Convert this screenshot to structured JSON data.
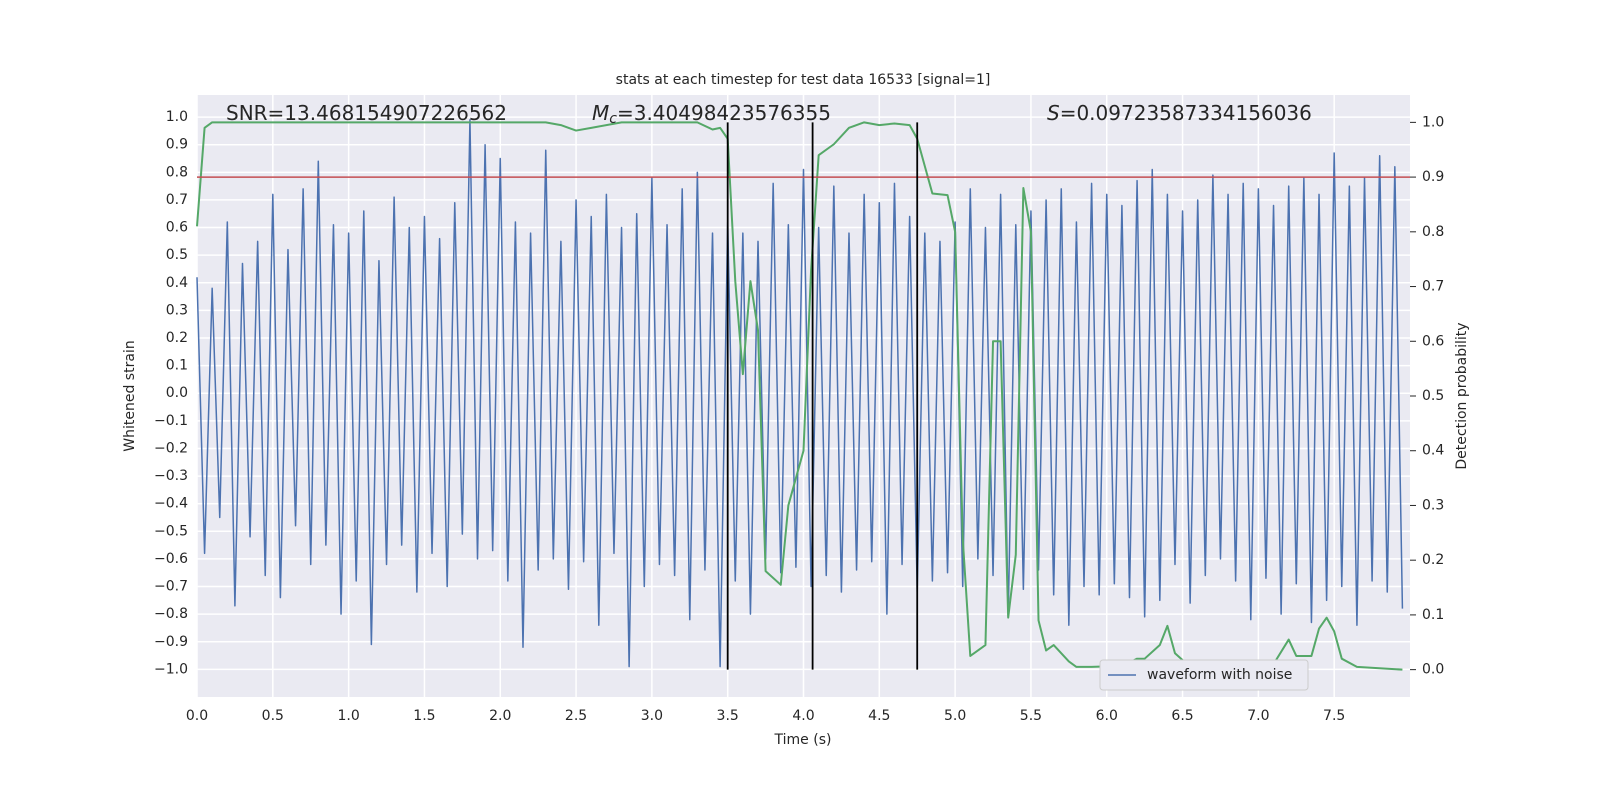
{
  "chart_data": {
    "type": "line",
    "title": "stats at each timestep for test data 16533 [signal=1]",
    "xlabel": "Time (s)",
    "ylabel": "Whitened strain",
    "y2label": "Detection probability",
    "xlim": [
      0,
      8.0
    ],
    "ylim": [
      -1.1,
      1.08
    ],
    "y2lim": [
      -0.05,
      1.05
    ],
    "xticks": [
      {
        "value": 0,
        "label": "0.0"
      },
      {
        "value": 0.5,
        "label": "0.5"
      },
      {
        "value": 1,
        "label": "1.0"
      },
      {
        "value": 1.5,
        "label": "1.5"
      },
      {
        "value": 2,
        "label": "2.0"
      },
      {
        "value": 2.5,
        "label": "2.5"
      },
      {
        "value": 3,
        "label": "3.0"
      },
      {
        "value": 3.5,
        "label": "3.5"
      },
      {
        "value": 4,
        "label": "4.0"
      },
      {
        "value": 4.5,
        "label": "4.5"
      },
      {
        "value": 5,
        "label": "5.0"
      },
      {
        "value": 5.5,
        "label": "5.5"
      },
      {
        "value": 6,
        "label": "6.0"
      },
      {
        "value": 6.5,
        "label": "6.5"
      },
      {
        "value": 7,
        "label": "7.0"
      },
      {
        "value": 7.5,
        "label": "7.5"
      }
    ],
    "yticks": [
      {
        "value": -1,
        "label": "−1.0"
      },
      {
        "value": -0.9,
        "label": "−0.9"
      },
      {
        "value": -0.8,
        "label": "−0.8"
      },
      {
        "value": -0.7,
        "label": "−0.7"
      },
      {
        "value": -0.6,
        "label": "−0.6"
      },
      {
        "value": -0.5,
        "label": "−0.5"
      },
      {
        "value": -0.4,
        "label": "−0.4"
      },
      {
        "value": -0.3,
        "label": "−0.3"
      },
      {
        "value": -0.2,
        "label": "−0.2"
      },
      {
        "value": -0.1,
        "label": "−0.1"
      },
      {
        "value": 0,
        "label": "0.0"
      },
      {
        "value": 0.1,
        "label": "0.1"
      },
      {
        "value": 0.2,
        "label": "0.2"
      },
      {
        "value": 0.3,
        "label": "0.3"
      },
      {
        "value": 0.4,
        "label": "0.4"
      },
      {
        "value": 0.5,
        "label": "0.5"
      },
      {
        "value": 0.6,
        "label": "0.6"
      },
      {
        "value": 0.7,
        "label": "0.7"
      },
      {
        "value": 0.8,
        "label": "0.8"
      },
      {
        "value": 0.9,
        "label": "0.9"
      },
      {
        "value": 1,
        "label": "1.0"
      }
    ],
    "y2ticks": [
      {
        "value": 0,
        "label": "0.0"
      },
      {
        "value": 0.1,
        "label": "0.1"
      },
      {
        "value": 0.2,
        "label": "0.2"
      },
      {
        "value": 0.3,
        "label": "0.3"
      },
      {
        "value": 0.4,
        "label": "0.4"
      },
      {
        "value": 0.5,
        "label": "0.5"
      },
      {
        "value": 0.6,
        "label": "0.6"
      },
      {
        "value": 0.7,
        "label": "0.7"
      },
      {
        "value": 0.8,
        "label": "0.8"
      },
      {
        "value": 0.9,
        "label": "0.9"
      },
      {
        "value": 1,
        "label": "1.0"
      }
    ],
    "grid": true,
    "legend": "lower right",
    "annotations": [
      {
        "text": "SNR=13.468154907226562"
      },
      {
        "symbol": "M",
        "subscript": "c",
        "text": "=3.40498423576355"
      },
      {
        "symbol": "S",
        "text": "=0.09723587334156036"
      }
    ],
    "reference_line": {
      "value": 0.9,
      "axis": "y2",
      "color": "#c44e52"
    },
    "vlines": {
      "x": [
        3.5,
        4.06,
        4.75
      ],
      "color": "#000000",
      "range": [
        0,
        1
      ],
      "axis": "y2"
    },
    "series": [
      {
        "name": "waveform with noise",
        "color": "#4c72b0",
        "x": [
          0,
          0.05,
          0.1,
          0.15,
          0.2,
          0.25,
          0.3,
          0.35,
          0.4,
          0.45,
          0.5,
          0.55,
          0.6,
          0.65,
          0.7,
          0.75,
          0.8,
          0.85,
          0.9,
          0.95,
          1,
          1.05,
          1.1,
          1.15,
          1.2,
          1.25,
          1.3,
          1.35,
          1.4,
          1.45,
          1.5,
          1.55,
          1.6,
          1.65,
          1.7,
          1.75,
          1.8,
          1.85,
          1.9,
          1.95,
          2,
          2.05,
          2.1,
          2.15,
          2.2,
          2.25,
          2.3,
          2.35,
          2.4,
          2.45,
          2.5,
          2.55,
          2.6,
          2.65,
          2.7,
          2.75,
          2.8,
          2.85,
          2.9,
          2.95,
          3,
          3.05,
          3.1,
          3.15,
          3.2,
          3.25,
          3.3,
          3.35,
          3.4,
          3.45,
          3.5,
          3.55,
          3.6,
          3.65,
          3.7,
          3.75,
          3.8,
          3.85,
          3.9,
          3.95,
          4,
          4.05,
          4.1,
          4.15,
          4.2,
          4.25,
          4.3,
          4.35,
          4.4,
          4.45,
          4.5,
          4.55,
          4.6,
          4.65,
          4.7,
          4.75,
          4.8,
          4.85,
          4.9,
          4.95,
          5,
          5.05,
          5.1,
          5.15,
          5.2,
          5.25,
          5.3,
          5.35,
          5.4,
          5.45,
          5.5,
          5.55,
          5.6,
          5.65,
          5.7,
          5.75,
          5.8,
          5.85,
          5.9,
          5.95,
          6,
          6.05,
          6.1,
          6.15,
          6.2,
          6.25,
          6.3,
          6.35,
          6.4,
          6.45,
          6.5,
          6.55,
          6.6,
          6.65,
          6.7,
          6.75,
          6.8,
          6.85,
          6.9,
          6.95,
          7,
          7.05,
          7.1,
          7.15,
          7.2,
          7.25,
          7.3,
          7.35,
          7.4,
          7.45,
          7.5,
          7.55,
          7.6,
          7.65,
          7.7,
          7.75,
          7.8,
          7.85,
          7.9,
          7.95
        ],
        "values": [
          0.42,
          -0.58,
          0.38,
          -0.45,
          0.62,
          -0.77,
          0.47,
          -0.52,
          0.55,
          -0.66,
          0.72,
          -0.74,
          0.52,
          -0.48,
          0.74,
          -0.62,
          0.84,
          -0.55,
          0.61,
          -0.8,
          0.58,
          -0.68,
          0.66,
          -0.91,
          0.48,
          -0.62,
          0.71,
          -0.55,
          0.6,
          -0.72,
          0.64,
          -0.58,
          0.56,
          -0.7,
          0.69,
          -0.51,
          0.99,
          -0.6,
          0.9,
          -0.57,
          0.85,
          -0.68,
          0.62,
          -0.92,
          0.58,
          -0.64,
          0.88,
          -0.6,
          0.55,
          -0.71,
          0.7,
          -0.61,
          0.64,
          -0.84,
          0.72,
          -0.58,
          0.6,
          -0.99,
          0.65,
          -0.7,
          0.78,
          -0.62,
          0.61,
          -0.66,
          0.74,
          -0.82,
          0.8,
          -0.64,
          0.58,
          -0.99,
          0.62,
          -0.68,
          0.58,
          -0.8,
          0.55,
          -0.6,
          0.76,
          -0.65,
          0.61,
          -0.63,
          0.81,
          -0.7,
          0.6,
          -0.66,
          0.75,
          -0.72,
          0.58,
          -0.64,
          0.72,
          -0.61,
          0.69,
          -0.8,
          0.76,
          -0.62,
          0.64,
          -0.72,
          0.58,
          -0.68,
          0.55,
          -0.65,
          0.62,
          -0.7,
          0.74,
          -0.6,
          0.6,
          -0.66,
          0.72,
          -0.81,
          0.61,
          -0.71,
          0.66,
          -0.64,
          0.7,
          -0.73,
          0.74,
          -0.84,
          0.62,
          -0.7,
          0.76,
          -0.73,
          0.72,
          -0.69,
          0.68,
          -0.74,
          0.77,
          -0.81,
          0.81,
          -0.75,
          0.72,
          -0.62,
          0.66,
          -0.76,
          0.7,
          -0.66,
          0.79,
          -0.6,
          0.72,
          -0.68,
          0.76,
          -0.82,
          0.74,
          -0.67,
          0.68,
          -0.8,
          0.75,
          -0.69,
          0.78,
          -0.83,
          0.72,
          -0.75,
          0.87,
          -0.7,
          0.75,
          -0.84,
          0.78,
          -0.68,
          0.86,
          -0.72,
          0.82,
          -0.78
        ]
      },
      {
        "color": "#55a868",
        "axis": "y2",
        "x": [
          0,
          0.05,
          0.1,
          0.2,
          0.4,
          0.8,
          1.2,
          1.6,
          2,
          2.3,
          2.4,
          2.5,
          2.6,
          2.8,
          3.1,
          3.3,
          3.4,
          3.45,
          3.5,
          3.55,
          3.6,
          3.65,
          3.7,
          3.75,
          3.85,
          3.9,
          4.0,
          4.05,
          4.1,
          4.2,
          4.3,
          4.4,
          4.5,
          4.6,
          4.7,
          4.75,
          4.85,
          4.95,
          5.0,
          5.05,
          5.1,
          5.2,
          5.25,
          5.3,
          5.35,
          5.4,
          5.45,
          5.5,
          5.55,
          5.6,
          5.65,
          5.75,
          5.8,
          5.9,
          6.0,
          6.1,
          6.2,
          6.25,
          6.35,
          6.4,
          6.45,
          6.55,
          6.7,
          6.85,
          7.0,
          7.1,
          7.2,
          7.25,
          7.35,
          7.4,
          7.45,
          7.5,
          7.55,
          7.65,
          7.95
        ],
        "values": [
          0.81,
          0.99,
          1.0,
          1.0,
          1.0,
          1.0,
          1.0,
          1.0,
          1.0,
          1.0,
          0.995,
          0.985,
          0.99,
          1.0,
          1.0,
          1.0,
          0.987,
          0.99,
          0.97,
          0.71,
          0.54,
          0.71,
          0.62,
          0.18,
          0.155,
          0.3,
          0.4,
          0.73,
          0.94,
          0.96,
          0.99,
          1.0,
          0.995,
          0.998,
          0.995,
          0.97,
          0.87,
          0.867,
          0.8,
          0.24,
          0.025,
          0.045,
          0.6,
          0.6,
          0.095,
          0.21,
          0.88,
          0.8,
          0.09,
          0.035,
          0.045,
          0.015,
          0.005,
          0.005,
          0.006,
          0.006,
          0.02,
          0.02,
          0.045,
          0.08,
          0.03,
          0.005,
          0.0,
          0.01,
          0.0,
          0.01,
          0.055,
          0.025,
          0.025,
          0.075,
          0.095,
          0.07,
          0.02,
          0.005,
          0.0
        ]
      }
    ]
  }
}
